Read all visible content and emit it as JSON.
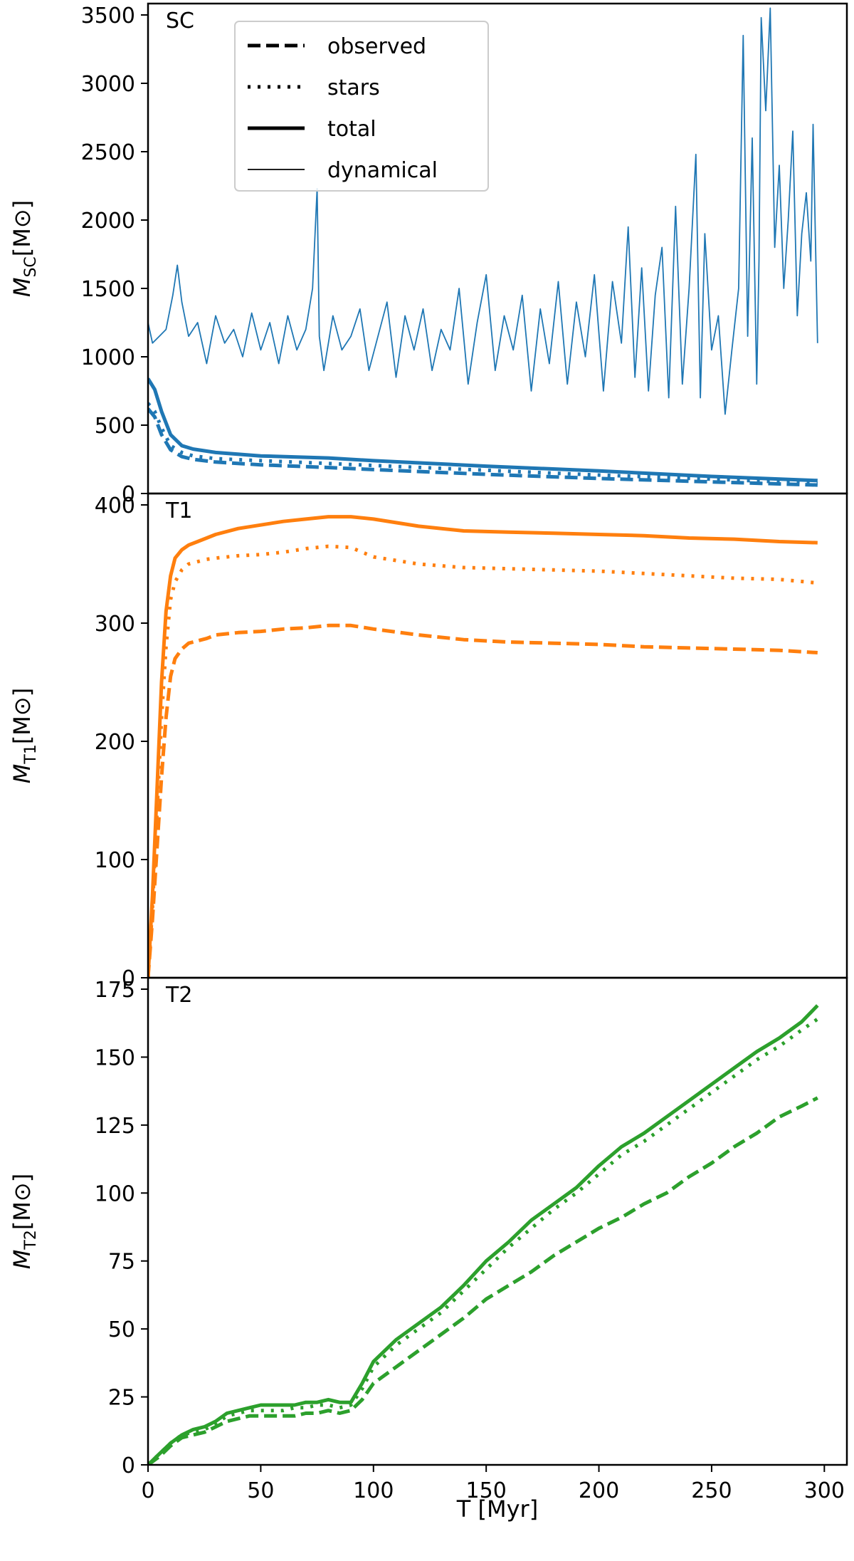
{
  "chart_data": [
    {
      "type": "line",
      "tag": "SC",
      "ylabel_main": "M",
      "ylabel_sub": "SC",
      "ylabel_unit": "[M⊙]",
      "xlim": [
        0,
        310
      ],
      "ylim": [
        0,
        3500
      ],
      "yticks": [
        0,
        500,
        1000,
        1500,
        2000,
        2500,
        3000,
        3500
      ],
      "color": "#1f77b4",
      "legend": {
        "position": "top-center",
        "entries": [
          {
            "label": "observed",
            "style": "dashed"
          },
          {
            "label": "stars",
            "style": "dotted"
          },
          {
            "label": "total",
            "style": "solid-thick"
          },
          {
            "label": "dynamical",
            "style": "solid-thin"
          }
        ]
      },
      "series": [
        {
          "name": "observed",
          "style": "dashed",
          "x": [
            0,
            3,
            6,
            10,
            15,
            20,
            30,
            50,
            80,
            100,
            150,
            200,
            250,
            297
          ],
          "y": [
            620,
            560,
            430,
            320,
            270,
            250,
            230,
            210,
            190,
            175,
            140,
            110,
            85,
            62
          ]
        },
        {
          "name": "stars",
          "style": "dotted",
          "x": [
            0,
            3,
            6,
            10,
            15,
            20,
            30,
            50,
            80,
            100,
            150,
            200,
            250,
            297
          ],
          "y": [
            660,
            600,
            480,
            350,
            300,
            275,
            255,
            240,
            220,
            205,
            170,
            135,
            105,
            75
          ]
        },
        {
          "name": "total",
          "style": "solid-thick",
          "x": [
            0,
            3,
            6,
            10,
            15,
            20,
            30,
            50,
            80,
            100,
            150,
            200,
            250,
            297
          ],
          "y": [
            840,
            760,
            600,
            430,
            350,
            325,
            300,
            275,
            260,
            240,
            200,
            165,
            125,
            95
          ]
        },
        {
          "name": "dynamical",
          "style": "solid-thin",
          "x": [
            0,
            2,
            5,
            8,
            11,
            13,
            15,
            18,
            22,
            26,
            30,
            34,
            38,
            42,
            46,
            50,
            54,
            58,
            62,
            66,
            70,
            73,
            75,
            76,
            78,
            82,
            86,
            90,
            94,
            98,
            102,
            106,
            110,
            114,
            118,
            122,
            126,
            130,
            134,
            138,
            142,
            146,
            150,
            154,
            158,
            162,
            166,
            170,
            174,
            178,
            182,
            186,
            190,
            194,
            198,
            202,
            206,
            210,
            213,
            216,
            219,
            222,
            225,
            228,
            231,
            234,
            237,
            240,
            243,
            245,
            247,
            250,
            253,
            256,
            259,
            262,
            264,
            266,
            268,
            270,
            271,
            272,
            274,
            276,
            278,
            280,
            282,
            284,
            286,
            288,
            290,
            292,
            294,
            295,
            297
          ],
          "y": [
            1250,
            1100,
            1150,
            1200,
            1450,
            1670,
            1400,
            1150,
            1250,
            950,
            1300,
            1100,
            1200,
            1000,
            1320,
            1050,
            1250,
            950,
            1300,
            1050,
            1200,
            1500,
            2230,
            1150,
            900,
            1300,
            1050,
            1150,
            1350,
            900,
            1150,
            1400,
            850,
            1300,
            1050,
            1350,
            900,
            1200,
            1050,
            1500,
            800,
            1250,
            1600,
            900,
            1300,
            1050,
            1450,
            750,
            1350,
            950,
            1550,
            800,
            1400,
            1000,
            1600,
            750,
            1550,
            1100,
            1950,
            850,
            1650,
            750,
            1450,
            1800,
            700,
            2100,
            800,
            1500,
            2480,
            700,
            1900,
            1050,
            1300,
            580,
            1050,
            1500,
            3350,
            1150,
            2600,
            800,
            1700,
            3480,
            2800,
            3550,
            1800,
            2400,
            1500,
            2000,
            2650,
            1300,
            1900,
            2200,
            1700,
            2700,
            1100
          ]
        }
      ]
    },
    {
      "type": "line",
      "tag": "T1",
      "ylabel_main": "M",
      "ylabel_sub": "T1",
      "ylabel_unit": "[M⊙]",
      "xlim": [
        0,
        310
      ],
      "ylim": [
        0,
        400
      ],
      "yticks": [
        0,
        100,
        200,
        300,
        400
      ],
      "color": "#ff7f0e",
      "series": [
        {
          "name": "observed",
          "style": "dashed",
          "x": [
            0,
            2,
            4,
            6,
            8,
            10,
            12,
            15,
            18,
            22,
            26,
            30,
            40,
            50,
            60,
            70,
            80,
            90,
            100,
            120,
            140,
            160,
            180,
            200,
            220,
            240,
            260,
            280,
            297
          ],
          "y": [
            0,
            50,
            110,
            170,
            220,
            255,
            270,
            278,
            283,
            285,
            287,
            290,
            292,
            293,
            295,
            296,
            298,
            298,
            295,
            290,
            286,
            284,
            283,
            282,
            280,
            279,
            278,
            277,
            275
          ]
        },
        {
          "name": "stars",
          "style": "dotted",
          "x": [
            0,
            2,
            4,
            6,
            8,
            10,
            12,
            15,
            18,
            22,
            26,
            30,
            40,
            50,
            60,
            70,
            80,
            90,
            100,
            120,
            140,
            160,
            180,
            200,
            220,
            240,
            260,
            280,
            297
          ],
          "y": [
            0,
            60,
            140,
            220,
            280,
            320,
            335,
            345,
            350,
            352,
            354,
            355,
            357,
            358,
            360,
            363,
            365,
            364,
            356,
            350,
            347,
            346,
            345,
            344,
            342,
            340,
            338,
            337,
            334
          ]
        },
        {
          "name": "total",
          "style": "solid-thick",
          "x": [
            0,
            2,
            4,
            6,
            8,
            10,
            12,
            15,
            18,
            22,
            26,
            30,
            40,
            50,
            60,
            70,
            80,
            90,
            100,
            120,
            140,
            160,
            180,
            200,
            220,
            240,
            260,
            280,
            297
          ],
          "y": [
            0,
            70,
            160,
            250,
            310,
            340,
            355,
            362,
            366,
            369,
            372,
            375,
            380,
            383,
            386,
            388,
            390,
            390,
            388,
            382,
            378,
            377,
            376,
            375,
            374,
            372,
            371,
            369,
            368
          ]
        }
      ]
    },
    {
      "type": "line",
      "tag": "T2",
      "ylabel_main": "M",
      "ylabel_sub": "T2",
      "ylabel_unit": "[M⊙]",
      "xlabel": "T [Myr]",
      "xlim": [
        0,
        310
      ],
      "ylim": [
        0,
        175
      ],
      "yticks": [
        0,
        25,
        50,
        75,
        100,
        125,
        150,
        175
      ],
      "xticks": [
        0,
        50,
        100,
        150,
        200,
        250,
        300
      ],
      "color": "#2ca02c",
      "series": [
        {
          "name": "observed",
          "style": "dashed",
          "x": [
            0,
            5,
            10,
            15,
            20,
            25,
            30,
            35,
            40,
            45,
            50,
            55,
            60,
            65,
            70,
            75,
            80,
            85,
            90,
            95,
            100,
            110,
            120,
            130,
            140,
            150,
            160,
            170,
            180,
            190,
            200,
            210,
            220,
            230,
            240,
            250,
            260,
            270,
            280,
            290,
            297
          ],
          "y": [
            0,
            3,
            7,
            10,
            11,
            12,
            14,
            16,
            17,
            18,
            18,
            18,
            18,
            18,
            19,
            19,
            20,
            19,
            20,
            24,
            30,
            36,
            42,
            48,
            54,
            61,
            66,
            71,
            77,
            82,
            87,
            91,
            96,
            100,
            106,
            111,
            117,
            122,
            128,
            132,
            135
          ]
        },
        {
          "name": "stars",
          "style": "dotted",
          "x": [
            0,
            5,
            10,
            15,
            20,
            25,
            30,
            35,
            40,
            45,
            50,
            55,
            60,
            65,
            70,
            75,
            80,
            85,
            90,
            95,
            100,
            110,
            120,
            130,
            140,
            150,
            160,
            170,
            180,
            190,
            200,
            210,
            220,
            230,
            240,
            250,
            260,
            270,
            280,
            290,
            297
          ],
          "y": [
            0,
            4,
            8,
            11,
            12,
            13,
            15,
            18,
            19,
            20,
            20,
            20,
            20,
            21,
            21,
            22,
            22,
            21,
            22,
            28,
            36,
            44,
            50,
            56,
            64,
            72,
            80,
            87,
            94,
            100,
            107,
            114,
            119,
            125,
            131,
            137,
            143,
            149,
            154,
            160,
            164
          ]
        },
        {
          "name": "total",
          "style": "solid-thick",
          "x": [
            0,
            5,
            10,
            15,
            20,
            25,
            30,
            35,
            40,
            45,
            50,
            55,
            60,
            65,
            70,
            75,
            80,
            85,
            90,
            95,
            100,
            110,
            120,
            130,
            140,
            150,
            160,
            170,
            180,
            190,
            200,
            210,
            220,
            230,
            240,
            250,
            260,
            270,
            280,
            290,
            297
          ],
          "y": [
            0,
            4,
            8,
            11,
            13,
            14,
            16,
            19,
            20,
            21,
            22,
            22,
            22,
            22,
            23,
            23,
            24,
            23,
            23,
            30,
            38,
            46,
            52,
            58,
            66,
            75,
            82,
            90,
            96,
            102,
            110,
            117,
            122,
            128,
            134,
            140,
            146,
            152,
            157,
            163,
            169
          ]
        }
      ]
    }
  ]
}
